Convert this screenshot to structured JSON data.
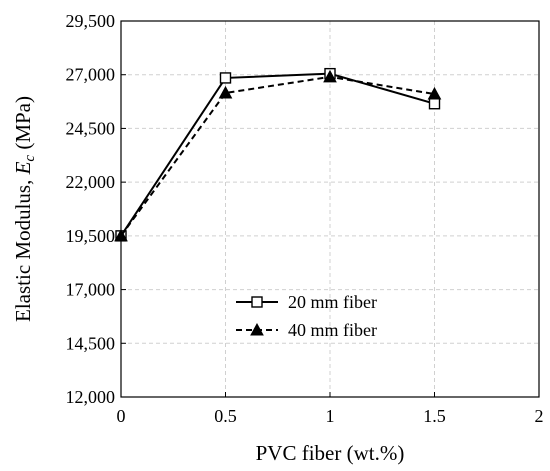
{
  "chart_data": {
    "type": "line",
    "xlabel": "PVC fiber (wt.%)",
    "ylabel_prefix": "Elastic Modulus, ",
    "ylabel_symbol": "E",
    "ylabel_subscript": "c",
    "ylabel_suffix": " (MPa)",
    "xlim": [
      0,
      2
    ],
    "ylim": [
      12000,
      29500
    ],
    "x_ticks": [
      0,
      0.5,
      1,
      1.5,
      2
    ],
    "x_tick_labels": [
      "0",
      "0.5",
      "1",
      "1.5",
      "2"
    ],
    "y_ticks": [
      12000,
      14500,
      17000,
      19500,
      22000,
      24500,
      27000,
      29500
    ],
    "y_tick_labels": [
      "12,000",
      "14,500",
      "17,000",
      "19,500",
      "22,000",
      "24,500",
      "27,000",
      "29,500"
    ],
    "grid": true,
    "legend_position": "lower-center",
    "series": [
      {
        "name": "20 mm fiber",
        "marker": "square",
        "line_style": "solid",
        "color": "#000000",
        "x": [
          0,
          0.5,
          1,
          1.5
        ],
        "y": [
          19500,
          26850,
          27050,
          25650
        ]
      },
      {
        "name": "40 mm fiber",
        "marker": "triangle",
        "line_style": "dashed",
        "color": "#000000",
        "x": [
          0,
          0.5,
          1,
          1.5
        ],
        "y": [
          19500,
          26150,
          26900,
          26100
        ]
      }
    ]
  }
}
